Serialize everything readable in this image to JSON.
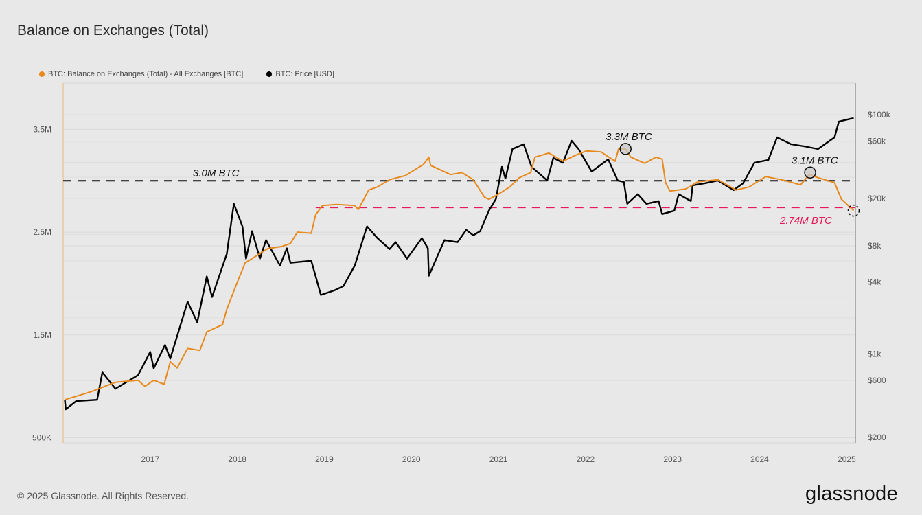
{
  "title": "Balance on Exchanges (Total)",
  "footer": "© 2025 Glassnode. All Rights Reserved.",
  "logo": "glassnode",
  "chart_data": {
    "type": "line",
    "title": "Balance on Exchanges (Total)",
    "legend_position": "top-left",
    "grid": true,
    "xlim": [
      2016.0,
      2025.1
    ],
    "x_ticks": [
      {
        "v": 2017,
        "label": "2017"
      },
      {
        "v": 2018,
        "label": "2018"
      },
      {
        "v": 2019,
        "label": "2019"
      },
      {
        "v": 2020,
        "label": "2020"
      },
      {
        "v": 2021,
        "label": "2021"
      },
      {
        "v": 2022,
        "label": "2022"
      },
      {
        "v": 2023,
        "label": "2023"
      },
      {
        "v": 2024,
        "label": "2024"
      },
      {
        "v": 2025,
        "label": "2025"
      }
    ],
    "y_left": {
      "scale": "linear",
      "ylim": [
        450000,
        3950000
      ],
      "ticks": [
        {
          "v": 500000,
          "label": "500K"
        },
        {
          "v": 1500000,
          "label": "1.5M"
        },
        {
          "v": 2500000,
          "label": "2.5M"
        },
        {
          "v": 3500000,
          "label": "3.5M"
        }
      ]
    },
    "y_right": {
      "scale": "log",
      "ylim": [
        180,
        184000
      ],
      "ticks": [
        {
          "v": 200,
          "label": "$200"
        },
        {
          "v": 600,
          "label": "$600"
        },
        {
          "v": 1000,
          "label": "$1k"
        },
        {
          "v": 4000,
          "label": "$4k"
        },
        {
          "v": 8000,
          "label": "$8k"
        },
        {
          "v": 20000,
          "label": "$20k"
        },
        {
          "v": 60000,
          "label": "$60k"
        },
        {
          "v": 100000,
          "label": "$100k"
        }
      ]
    },
    "series": [
      {
        "name": "BTC: Balance on Exchanges (Total) - All Exchanges [BTC]",
        "axis": "left",
        "color": "#e8891c",
        "unit": "BTC (millions)",
        "points": [
          [
            2016.02,
            0.87
          ],
          [
            2016.33,
            0.95
          ],
          [
            2016.6,
            1.04
          ],
          [
            2016.86,
            1.06
          ],
          [
            2016.94,
            1.0
          ],
          [
            2017.04,
            1.06
          ],
          [
            2017.16,
            1.02
          ],
          [
            2017.23,
            1.24
          ],
          [
            2017.31,
            1.18
          ],
          [
            2017.43,
            1.37
          ],
          [
            2017.57,
            1.35
          ],
          [
            2017.65,
            1.53
          ],
          [
            2017.83,
            1.6
          ],
          [
            2017.88,
            1.75
          ],
          [
            2017.98,
            1.97
          ],
          [
            2018.09,
            2.2
          ],
          [
            2018.22,
            2.27
          ],
          [
            2018.35,
            2.34
          ],
          [
            2018.51,
            2.36
          ],
          [
            2018.61,
            2.39
          ],
          [
            2018.69,
            2.5
          ],
          [
            2018.85,
            2.49
          ],
          [
            2018.9,
            2.67
          ],
          [
            2018.98,
            2.76
          ],
          [
            2019.14,
            2.77
          ],
          [
            2019.35,
            2.76
          ],
          [
            2019.39,
            2.72
          ],
          [
            2019.51,
            2.91
          ],
          [
            2019.61,
            2.94
          ],
          [
            2019.75,
            3.01
          ],
          [
            2019.93,
            3.05
          ],
          [
            2020.14,
            3.16
          ],
          [
            2020.2,
            3.23
          ],
          [
            2020.22,
            3.15
          ],
          [
            2020.45,
            3.06
          ],
          [
            2020.58,
            3.08
          ],
          [
            2020.71,
            3.01
          ],
          [
            2020.84,
            2.84
          ],
          [
            2020.89,
            2.82
          ],
          [
            2021.0,
            2.87
          ],
          [
            2021.13,
            2.94
          ],
          [
            2021.24,
            3.03
          ],
          [
            2021.37,
            3.08
          ],
          [
            2021.42,
            3.23
          ],
          [
            2021.58,
            3.27
          ],
          [
            2021.74,
            3.19
          ],
          [
            2021.89,
            3.25
          ],
          [
            2022.01,
            3.29
          ],
          [
            2022.18,
            3.28
          ],
          [
            2022.34,
            3.19
          ],
          [
            2022.38,
            3.31
          ],
          [
            2022.46,
            3.31
          ],
          [
            2022.52,
            3.23
          ],
          [
            2022.68,
            3.17
          ],
          [
            2022.81,
            3.23
          ],
          [
            2022.88,
            3.21
          ],
          [
            2022.92,
            2.98
          ],
          [
            2022.97,
            2.9
          ],
          [
            2023.15,
            2.92
          ],
          [
            2023.29,
            2.99
          ],
          [
            2023.52,
            3.01
          ],
          [
            2023.73,
            2.91
          ],
          [
            2023.88,
            2.94
          ],
          [
            2024.07,
            3.04
          ],
          [
            2024.25,
            3.01
          ],
          [
            2024.47,
            2.96
          ],
          [
            2024.57,
            3.06
          ],
          [
            2024.67,
            3.03
          ],
          [
            2024.86,
            2.98
          ],
          [
            2024.94,
            2.82
          ],
          [
            2025.08,
            2.71
          ]
        ]
      },
      {
        "name": "BTC: Price [USD]",
        "axis": "right",
        "color": "#000000",
        "unit": "USD",
        "points": [
          [
            2016.02,
            413
          ],
          [
            2016.03,
            344
          ],
          [
            2016.15,
            403
          ],
          [
            2016.39,
            413
          ],
          [
            2016.45,
            700
          ],
          [
            2016.6,
            511
          ],
          [
            2016.86,
            664
          ],
          [
            2017.0,
            1040
          ],
          [
            2017.04,
            758
          ],
          [
            2017.17,
            1187
          ],
          [
            2017.23,
            912
          ],
          [
            2017.43,
            2730
          ],
          [
            2017.54,
            1835
          ],
          [
            2017.65,
            4440
          ],
          [
            2017.71,
            2990
          ],
          [
            2017.88,
            6870
          ],
          [
            2017.96,
            17990
          ],
          [
            2018.06,
            11640
          ],
          [
            2018.1,
            6260
          ],
          [
            2018.17,
            10610
          ],
          [
            2018.26,
            6260
          ],
          [
            2018.33,
            8940
          ],
          [
            2018.49,
            5480
          ],
          [
            2018.57,
            7640
          ],
          [
            2018.61,
            5780
          ],
          [
            2018.85,
            6010
          ],
          [
            2018.96,
            3110
          ],
          [
            2019.12,
            3410
          ],
          [
            2019.22,
            3690
          ],
          [
            2019.35,
            5480
          ],
          [
            2019.49,
            11640
          ],
          [
            2019.61,
            9290
          ],
          [
            2019.75,
            7530
          ],
          [
            2019.82,
            8590
          ],
          [
            2019.95,
            6260
          ],
          [
            2020.12,
            9290
          ],
          [
            2020.19,
            7640
          ],
          [
            2020.2,
            4500
          ],
          [
            2020.38,
            8940
          ],
          [
            2020.53,
            8590
          ],
          [
            2020.63,
            10890
          ],
          [
            2020.71,
            9800
          ],
          [
            2020.79,
            10610
          ],
          [
            2020.89,
            15770
          ],
          [
            2020.97,
            19720
          ],
          [
            2021.04,
            36650
          ],
          [
            2021.08,
            29310
          ],
          [
            2021.16,
            51680
          ],
          [
            2021.29,
            56730
          ],
          [
            2021.38,
            36650
          ],
          [
            2021.56,
            28180
          ],
          [
            2021.63,
            43550
          ],
          [
            2021.74,
            39700
          ],
          [
            2021.84,
            60560
          ],
          [
            2021.92,
            51680
          ],
          [
            2022.07,
            33440
          ],
          [
            2022.26,
            42420
          ],
          [
            2022.37,
            28180
          ],
          [
            2022.44,
            27430
          ],
          [
            2022.48,
            17990
          ],
          [
            2022.6,
            21640
          ],
          [
            2022.7,
            17990
          ],
          [
            2022.84,
            18970
          ],
          [
            2022.88,
            14760
          ],
          [
            2023.02,
            15770
          ],
          [
            2023.07,
            21640
          ],
          [
            2023.21,
            18970
          ],
          [
            2023.23,
            25680
          ],
          [
            2023.37,
            26730
          ],
          [
            2023.52,
            28180
          ],
          [
            2023.7,
            23420
          ],
          [
            2023.81,
            26730
          ],
          [
            2023.94,
            39700
          ],
          [
            2024.1,
            41880
          ],
          [
            2024.2,
            64730
          ],
          [
            2024.36,
            56730
          ],
          [
            2024.51,
            54490
          ],
          [
            2024.67,
            51680
          ],
          [
            2024.86,
            64730
          ],
          [
            2024.91,
            87700
          ],
          [
            2025.04,
            92400
          ],
          [
            2025.08,
            93600
          ]
        ]
      }
    ],
    "annotations": {
      "ref_line_black": {
        "value": 3.0,
        "label": "3.0M BTC",
        "color": "#111111",
        "from": 2016.0
      },
      "ref_line_pink": {
        "value": 2.74,
        "label": "2.74M BTC",
        "color": "#e8195a",
        "from": 2018.9
      },
      "marker_peak_2022": {
        "x": 2022.46,
        "value": 3.31,
        "label": "3.3M BTC"
      },
      "marker_2024": {
        "x": 2024.58,
        "value": 3.08,
        "label": "3.1M BTC"
      },
      "marker_latest": {
        "x": 2025.08,
        "value": 2.71
      }
    }
  }
}
